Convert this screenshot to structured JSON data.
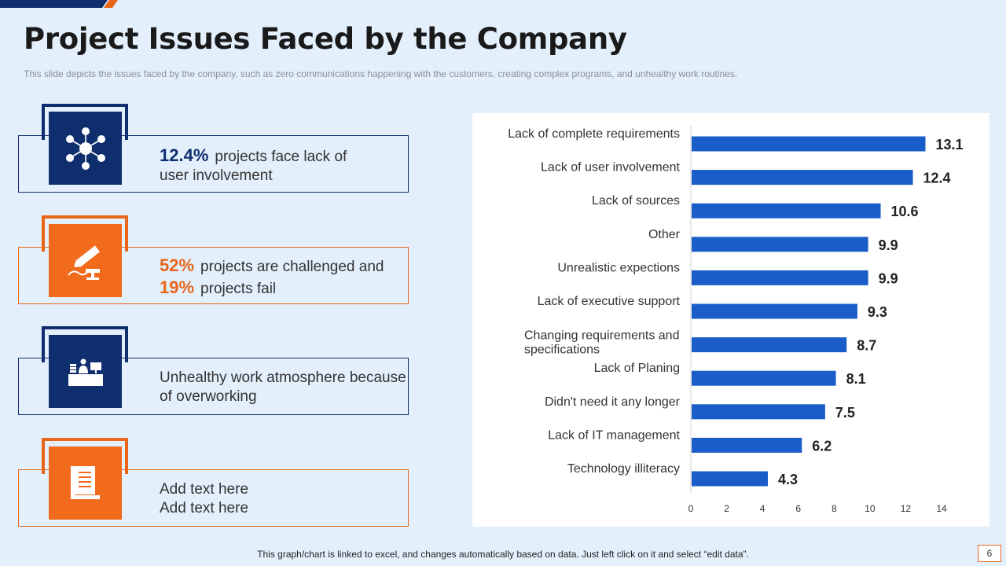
{
  "header": {
    "title": "Project Issues Faced by the Company",
    "subtitle": "This slide depicts the issues faced by the company, such as zero communications happening with the customers, creating complex programs, and unhealthy work routines."
  },
  "cards": [
    {
      "percent": "12.4%",
      "line1": "projects face lack of",
      "line2": "user involvement",
      "icon": "network-hub-icon",
      "color": "#0f2e6e"
    },
    {
      "percent1": "52%",
      "text1": "projects are challenged and",
      "percent2": "19%",
      "text2": "projects fail",
      "icon": "writing-desk-icon",
      "color": "#f26a1b"
    },
    {
      "line1": "Unhealthy work atmosphere because",
      "line2": "of overworking",
      "icon": "office-desk-icon",
      "color": "#0f2e6e"
    },
    {
      "line1": "Add text here",
      "line2": "Add text here",
      "icon": "book-icon",
      "color": "#f26a1b"
    }
  ],
  "chart_data": {
    "type": "bar",
    "orientation": "horizontal",
    "categories": [
      "Lack of complete requirements",
      "Lack of user involvement",
      "Lack of sources",
      "Other",
      "Unrealistic expections",
      "Lack of executive support",
      "Changing requirements and specifications",
      "Lack of Planing",
      "Didn't need it any longer",
      "Lack of IT management",
      "Technology illiteracy"
    ],
    "values": [
      13.1,
      12.4,
      10.6,
      9.9,
      9.9,
      9.3,
      8.7,
      8.1,
      7.5,
      6.2,
      4.3
    ],
    "value_labels": [
      "13.1",
      "12.4",
      "10.6",
      "9.9",
      "9.9",
      "9.3",
      "8.7",
      "8.1",
      "7.5",
      "6.2",
      "4.3"
    ],
    "xlim": [
      0,
      14
    ],
    "x_ticks": [
      "0",
      "2",
      "4",
      "6",
      "8",
      "10",
      "12",
      "14"
    ],
    "bar_color": "#1a5dc8",
    "grid": false,
    "legend": "none"
  },
  "footer": {
    "note": "This graph/chart is linked to excel, and changes automatically based on data. Just left click on it and select “edit data”.",
    "page_number": "6"
  },
  "colors": {
    "navy": "#0f2e6e",
    "orange": "#f26a1b",
    "background": "#e3effb"
  }
}
